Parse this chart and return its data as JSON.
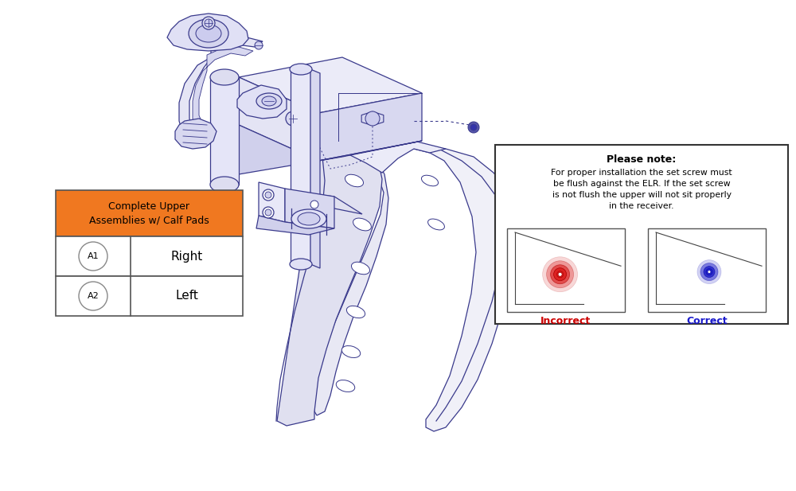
{
  "bg_color": "#ffffff",
  "dc": "#3a3a8c",
  "lc": "#8888cc",
  "fc": "#eeeef8",
  "fc2": "#f4f4fb",
  "note_title": "Please note:",
  "note_body": "For proper installation the set screw must\nbe flush against the ELR. If the set screw\nis not flush the upper will not sit properly\nin the receiver.",
  "incorrect_label": "Incorrect",
  "correct_label": "Correct",
  "incorrect_color": "#cc0000",
  "correct_color": "#1a1acc",
  "table_header": "Complete Upper\nAssemblies w/ Calf Pads",
  "table_header_bg": "#f07820",
  "row1_id": "A1",
  "row1_desc": "Right",
  "row2_id": "A2",
  "row2_desc": "Left"
}
